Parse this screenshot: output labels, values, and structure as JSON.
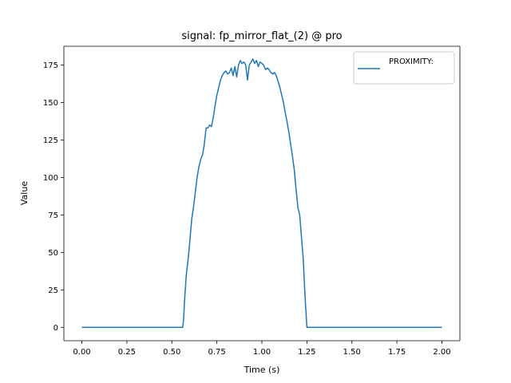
{
  "chart_data": {
    "type": "line",
    "title": "signal: fp_mirror_flat_(2) @ pro",
    "xlabel": "Time (s)",
    "ylabel": "Value",
    "xlim": [
      -0.1,
      2.1
    ],
    "ylim": [
      -8.9,
      187.5
    ],
    "xticks": [
      0.0,
      0.25,
      0.5,
      0.75,
      1.0,
      1.25,
      1.5,
      1.75,
      2.0
    ],
    "xtick_labels": [
      "0.00",
      "0.25",
      "0.50",
      "0.75",
      "1.00",
      "1.25",
      "1.50",
      "1.75",
      "2.00"
    ],
    "yticks": [
      0,
      25,
      50,
      75,
      100,
      125,
      150,
      175
    ],
    "ytick_labels": [
      "0",
      "25",
      "50",
      "75",
      "100",
      "125",
      "150",
      "175"
    ],
    "grid": false,
    "legend_position": "upper right",
    "series": [
      {
        "name": "PROXIMITY:",
        "color": "#1f77b4",
        "x": [
          0.0,
          0.1,
          0.2,
          0.3,
          0.4,
          0.5,
          0.56,
          0.565,
          0.57,
          0.58,
          0.59,
          0.6,
          0.61,
          0.62,
          0.63,
          0.64,
          0.65,
          0.66,
          0.67,
          0.68,
          0.69,
          0.7,
          0.71,
          0.72,
          0.73,
          0.74,
          0.75,
          0.76,
          0.77,
          0.78,
          0.79,
          0.8,
          0.81,
          0.82,
          0.83,
          0.84,
          0.85,
          0.86,
          0.87,
          0.88,
          0.89,
          0.9,
          0.91,
          0.92,
          0.93,
          0.94,
          0.95,
          0.96,
          0.97,
          0.98,
          0.99,
          1.0,
          1.01,
          1.02,
          1.03,
          1.04,
          1.05,
          1.06,
          1.07,
          1.08,
          1.09,
          1.1,
          1.11,
          1.12,
          1.13,
          1.14,
          1.15,
          1.16,
          1.17,
          1.18,
          1.19,
          1.2,
          1.21,
          1.22,
          1.23,
          1.24,
          1.25,
          1.26,
          1.27,
          1.28,
          1.29,
          1.3,
          1.31,
          1.32,
          1.33,
          1.34,
          1.35,
          1.36,
          1.37,
          1.38,
          1.39,
          1.4,
          1.41,
          1.42,
          1.43,
          1.44,
          1.45,
          1.46,
          1.47,
          1.475,
          1.48,
          1.5,
          1.6,
          1.7,
          1.8,
          1.9,
          2.0
        ],
        "y": [
          0,
          0,
          0,
          0,
          0,
          0,
          0,
          5,
          17,
          35,
          45,
          58,
          72,
          80,
          90,
          100,
          107,
          112,
          115,
          122,
          133,
          133,
          135,
          134,
          140,
          148,
          155,
          160,
          165,
          168,
          170,
          171,
          169,
          170,
          173,
          168,
          174,
          167,
          175,
          178,
          176,
          177,
          175,
          165,
          175,
          177,
          179,
          176,
          178,
          174,
          177,
          176,
          175,
          172,
          173,
          172,
          170,
          169,
          170,
          168,
          164,
          160,
          155,
          150,
          143,
          137,
          130,
          122,
          114,
          105,
          92,
          80,
          75,
          60,
          45,
          20,
          0,
          0,
          0,
          0,
          0,
          0,
          0,
          0,
          0,
          0,
          0,
          0,
          0,
          0,
          0,
          0,
          0,
          0,
          0,
          0,
          0,
          0,
          0,
          0,
          0,
          0,
          0,
          0,
          0,
          0,
          0
        ]
      }
    ]
  }
}
